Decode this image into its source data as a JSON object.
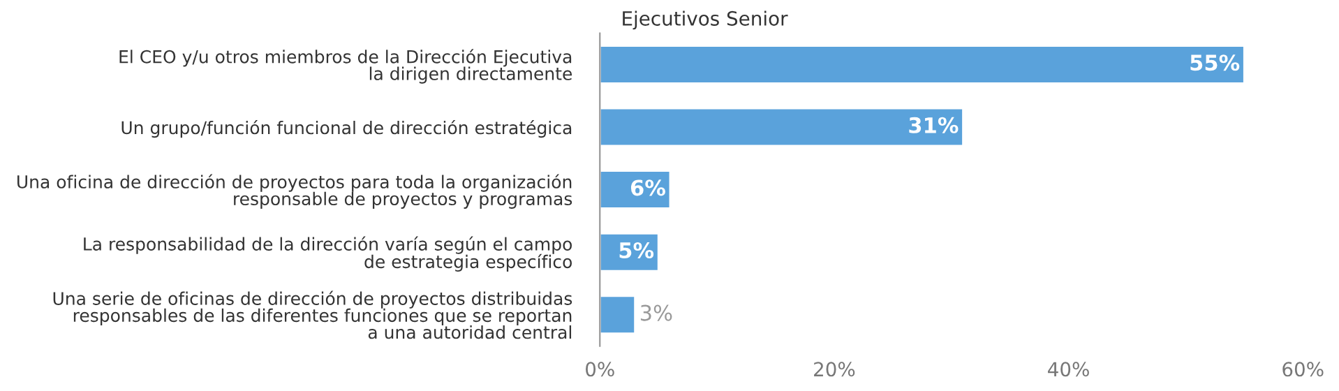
{
  "chart_data": {
    "type": "bar",
    "orientation": "horizontal",
    "title": "Ejecutivos Senior",
    "categories": [
      "El CEO y/u otros miembros de la Dirección Ejecutiva\nla dirigen directamente",
      "Un grupo/función funcional de dirección estratégica",
      "Una oficina de dirección de proyectos para toda la organización\nresponsable de proyectos y programas",
      "La responsabilidad de la dirección varía según el campo\nde estrategia específico",
      "Una serie de oficinas de dirección de proyectos distribuidas\nresponsables de las diferentes funciones que se reportan\na una autoridad central"
    ],
    "values": [
      55,
      31,
      6,
      5,
      3
    ],
    "value_labels": [
      "55%",
      "31%",
      "6%",
      "5%",
      "3%"
    ],
    "color": "#5aa2db",
    "xlim": [
      0,
      60
    ],
    "xticks": [
      {
        "value": 0,
        "label": "0%"
      },
      {
        "value": 20,
        "label": "20%"
      },
      {
        "value": 40,
        "label": "40%"
      },
      {
        "value": 60,
        "label": "60%"
      }
    ],
    "grid": false,
    "legend": false
  }
}
